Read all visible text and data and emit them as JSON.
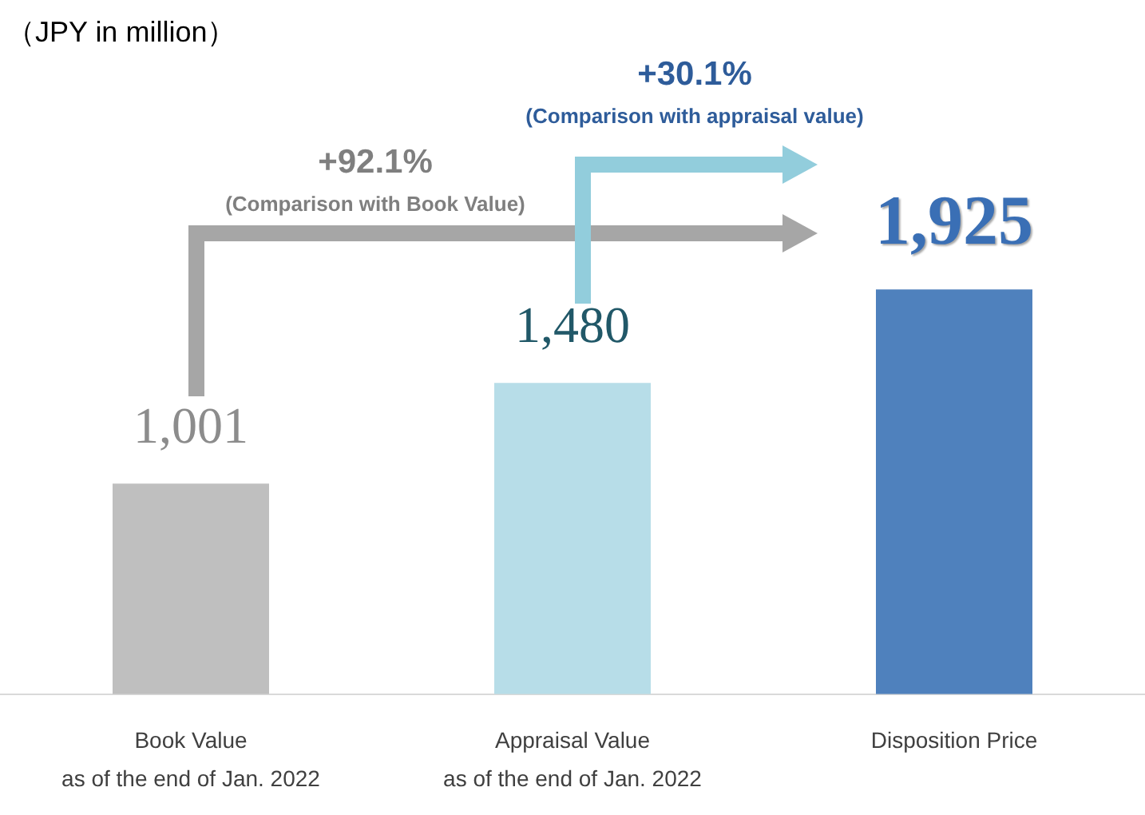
{
  "chart_data": {
    "type": "bar",
    "categories": [
      "Book Value\nas of the end of Jan. 2022",
      "Appraisal Value\nas of the end of Jan. 2022",
      "Disposition Price"
    ],
    "values": [
      1001,
      1480,
      1925
    ],
    "value_labels": [
      "1,001",
      "1,480",
      "1,925"
    ],
    "colors": [
      "#bfbfbf",
      "#b7dde8",
      "#4f81bd"
    ],
    "annotations": [
      "（JPY in million）",
      "+92.1%",
      "(Comparison with Book Value)",
      "+30.1%",
      "(Comparison with appraisal value)"
    ]
  }
}
